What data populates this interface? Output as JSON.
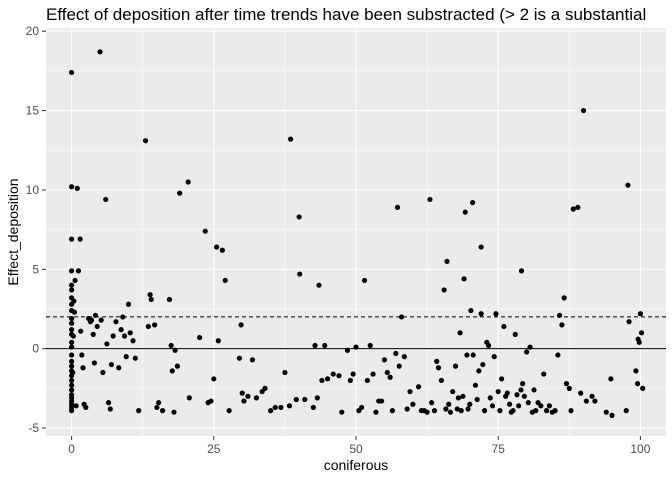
{
  "chart_data": {
    "type": "scatter",
    "title": "Effect of deposition after time trends have been substracted (> 2 is a substantial",
    "xlabel": "coniferous",
    "ylabel": "Effect_deposition",
    "xlim": [
      -4.5,
      104.5
    ],
    "ylim": [
      -5.5,
      20.2
    ],
    "x_ticks": [
      0,
      25,
      50,
      75,
      100
    ],
    "y_ticks": [
      -5,
      0,
      5,
      10,
      15,
      20
    ],
    "x_tick_labels": [
      "0",
      "25",
      "50",
      "75",
      "100"
    ],
    "y_tick_labels": [
      "-5",
      "0",
      "5",
      "10",
      "15",
      "20"
    ],
    "hlines": [
      {
        "y": 0,
        "style": "solid"
      },
      {
        "y": 2,
        "style": "dashed"
      }
    ],
    "grid": true,
    "background": "#ebebeb",
    "point_color": "#000000",
    "points": [
      [
        0,
        17.4
      ],
      [
        0,
        10.2
      ],
      [
        0,
        6.9
      ],
      [
        0,
        4.9
      ],
      [
        0,
        4.0
      ],
      [
        0,
        3.7
      ],
      [
        0,
        3.2
      ],
      [
        0,
        2.8
      ],
      [
        0,
        2.4
      ],
      [
        0,
        1.9
      ],
      [
        0,
        1.6
      ],
      [
        0,
        1.2
      ],
      [
        0,
        0.9
      ],
      [
        0,
        0.4
      ],
      [
        0,
        0.1
      ],
      [
        0,
        -0.4
      ],
      [
        0,
        -0.8
      ],
      [
        0,
        -1.1
      ],
      [
        0,
        -1.4
      ],
      [
        0,
        -1.7
      ],
      [
        0,
        -2.0
      ],
      [
        0,
        -2.3
      ],
      [
        0,
        -2.6
      ],
      [
        0,
        -2.9
      ],
      [
        0,
        -3.1
      ],
      [
        0,
        -3.3
      ],
      [
        0,
        -3.5
      ],
      [
        0,
        -3.7
      ],
      [
        0,
        -3.9
      ],
      [
        0.2,
        -1.5
      ],
      [
        0.3,
        0.8
      ],
      [
        0.4,
        3.0
      ],
      [
        0.5,
        2.3
      ],
      [
        0.6,
        4.3
      ],
      [
        0.8,
        -3.6
      ],
      [
        1.0,
        10.1
      ],
      [
        1.2,
        4.9
      ],
      [
        1.5,
        6.9
      ],
      [
        1.6,
        1.1
      ],
      [
        1.8,
        -0.4
      ],
      [
        2.0,
        -1.2
      ],
      [
        2.2,
        -3.5
      ],
      [
        2.5,
        -3.7
      ],
      [
        3.0,
        1.9
      ],
      [
        3.3,
        1.7
      ],
      [
        3.5,
        1.8
      ],
      [
        3.8,
        0.9
      ],
      [
        4.0,
        -0.9
      ],
      [
        4.2,
        2.1
      ],
      [
        4.5,
        1.4
      ],
      [
        5.0,
        18.7
      ],
      [
        5.2,
        1.8
      ],
      [
        5.5,
        -1.5
      ],
      [
        6.0,
        9.4
      ],
      [
        6.2,
        0.3
      ],
      [
        6.5,
        -3.4
      ],
      [
        6.8,
        -3.8
      ],
      [
        7.0,
        -1.0
      ],
      [
        7.3,
        0.8
      ],
      [
        7.8,
        1.7
      ],
      [
        8.3,
        -1.2
      ],
      [
        8.7,
        1.2
      ],
      [
        9.0,
        2.0
      ],
      [
        9.3,
        0.8
      ],
      [
        9.6,
        -0.5
      ],
      [
        10.0,
        2.8
      ],
      [
        10.3,
        1.0
      ],
      [
        10.8,
        0.5
      ],
      [
        11.2,
        -0.6
      ],
      [
        11.8,
        -3.9
      ],
      [
        13.0,
        13.1
      ],
      [
        13.5,
        1.4
      ],
      [
        13.8,
        3.4
      ],
      [
        14.0,
        3.1
      ],
      [
        14.6,
        1.5
      ],
      [
        15.0,
        -3.7
      ],
      [
        15.3,
        -3.4
      ],
      [
        16.0,
        -3.9
      ],
      [
        17.2,
        3.1
      ],
      [
        17.5,
        0.2
      ],
      [
        17.7,
        -1.4
      ],
      [
        18.0,
        -4.0
      ],
      [
        18.2,
        -0.1
      ],
      [
        18.6,
        -1.1
      ],
      [
        19.0,
        9.8
      ],
      [
        20.5,
        10.5
      ],
      [
        20.7,
        -3.1
      ],
      [
        22.5,
        0.7
      ],
      [
        23.5,
        7.4
      ],
      [
        24.0,
        -3.4
      ],
      [
        24.5,
        -3.3
      ],
      [
        25.0,
        -1.9
      ],
      [
        25.5,
        6.4
      ],
      [
        25.8,
        0.5
      ],
      [
        26.5,
        6.2
      ],
      [
        27.0,
        4.3
      ],
      [
        27.7,
        -3.9
      ],
      [
        29.5,
        -0.6
      ],
      [
        29.8,
        1.5
      ],
      [
        30.0,
        -2.8
      ],
      [
        30.3,
        -3.3
      ],
      [
        31.0,
        -3.0
      ],
      [
        31.8,
        -0.7
      ],
      [
        32.5,
        -3.1
      ],
      [
        33.5,
        -2.7
      ],
      [
        34.0,
        -2.5
      ],
      [
        35.0,
        -3.9
      ],
      [
        35.8,
        -3.7
      ],
      [
        36.8,
        -3.7
      ],
      [
        37.5,
        -1.5
      ],
      [
        38.5,
        13.2
      ],
      [
        38.3,
        -3.6
      ],
      [
        39.5,
        -3.2
      ],
      [
        40.0,
        8.3
      ],
      [
        40.1,
        4.7
      ],
      [
        41.0,
        -3.2
      ],
      [
        42.5,
        -3.7
      ],
      [
        42.8,
        0.2
      ],
      [
        43.2,
        -3.1
      ],
      [
        43.5,
        4.0
      ],
      [
        44.0,
        -2.0
      ],
      [
        44.5,
        0.2
      ],
      [
        45.0,
        -1.9
      ],
      [
        46.0,
        -1.6
      ],
      [
        47.0,
        -1.7
      ],
      [
        47.5,
        -4.0
      ],
      [
        48.5,
        -0.1
      ],
      [
        49.0,
        -2.0
      ],
      [
        49.5,
        -1.6
      ],
      [
        50.0,
        0.1
      ],
      [
        50.5,
        -3.9
      ],
      [
        51.0,
        -3.7
      ],
      [
        51.5,
        4.3
      ],
      [
        52.0,
        -2.0
      ],
      [
        52.5,
        0.2
      ],
      [
        53.0,
        -1.6
      ],
      [
        53.5,
        -4.0
      ],
      [
        54.0,
        -3.3
      ],
      [
        54.5,
        -3.3
      ],
      [
        55.0,
        -0.7
      ],
      [
        55.5,
        -1.5
      ],
      [
        56.0,
        -1.8
      ],
      [
        56.4,
        -3.9
      ],
      [
        57.0,
        -0.3
      ],
      [
        57.3,
        8.9
      ],
      [
        57.6,
        -1.1
      ],
      [
        58.0,
        2.0
      ],
      [
        58.5,
        -0.5
      ],
      [
        59.0,
        -3.8
      ],
      [
        59.5,
        -2.7
      ],
      [
        60.0,
        -3.5
      ],
      [
        61.0,
        -2.4
      ],
      [
        61.5,
        -3.9
      ],
      [
        62.0,
        -3.9
      ],
      [
        62.5,
        -4.0
      ],
      [
        63.0,
        9.4
      ],
      [
        63.3,
        -3.4
      ],
      [
        63.8,
        -3.9
      ],
      [
        64.2,
        -0.8
      ],
      [
        64.5,
        -1.2
      ],
      [
        65.0,
        -2.0
      ],
      [
        65.5,
        3.7
      ],
      [
        65.8,
        -3.8
      ],
      [
        66.0,
        5.5
      ],
      [
        66.3,
        -3.5
      ],
      [
        66.6,
        -4.0
      ],
      [
        67.0,
        -2.7
      ],
      [
        67.5,
        -1.1
      ],
      [
        67.8,
        -3.8
      ],
      [
        68.0,
        -3.1
      ],
      [
        68.3,
        1.0
      ],
      [
        68.5,
        -3.9
      ],
      [
        68.8,
        -3.0
      ],
      [
        69.0,
        4.4
      ],
      [
        69.2,
        8.6
      ],
      [
        69.5,
        -0.4
      ],
      [
        69.7,
        -3.8
      ],
      [
        70.0,
        -3.5
      ],
      [
        70.2,
        2.4
      ],
      [
        70.5,
        9.2
      ],
      [
        70.6,
        -0.4
      ],
      [
        71.0,
        -2.3
      ],
      [
        71.3,
        -3.2
      ],
      [
        71.6,
        -1.4
      ],
      [
        72.0,
        2.2
      ],
      [
        72.0,
        6.4
      ],
      [
        72.3,
        -1.0
      ],
      [
        72.6,
        -3.9
      ],
      [
        73.0,
        0.4
      ],
      [
        73.3,
        0.2
      ],
      [
        73.6,
        -3.1
      ],
      [
        74.0,
        -3.6
      ],
      [
        74.3,
        -0.5
      ],
      [
        74.6,
        2.2
      ],
      [
        75.0,
        -2.7
      ],
      [
        75.3,
        -3.9
      ],
      [
        75.6,
        -1.9
      ],
      [
        76.0,
        1.4
      ],
      [
        76.3,
        -3.0
      ],
      [
        76.6,
        -2.8
      ],
      [
        77.0,
        -3.5
      ],
      [
        77.3,
        -4.0
      ],
      [
        77.6,
        -3.9
      ],
      [
        78.0,
        0.9
      ],
      [
        78.3,
        -2.9
      ],
      [
        78.6,
        -3.6
      ],
      [
        79.0,
        -2.6
      ],
      [
        79.1,
        4.9
      ],
      [
        79.3,
        -2.2
      ],
      [
        79.6,
        -3.0
      ],
      [
        80.0,
        -0.2
      ],
      [
        80.3,
        -3.4
      ],
      [
        80.6,
        0.1
      ],
      [
        81.0,
        -4.0
      ],
      [
        81.3,
        -2.6
      ],
      [
        81.6,
        -3.9
      ],
      [
        82.0,
        -3.4
      ],
      [
        82.5,
        -3.6
      ],
      [
        83.0,
        -1.6
      ],
      [
        83.5,
        -3.9
      ],
      [
        84.0,
        -3.6
      ],
      [
        84.5,
        -4.0
      ],
      [
        85.0,
        -3.9
      ],
      [
        85.5,
        -0.4
      ],
      [
        85.8,
        2.1
      ],
      [
        86.2,
        1.5
      ],
      [
        86.6,
        3.2
      ],
      [
        87.0,
        -2.2
      ],
      [
        87.5,
        -2.5
      ],
      [
        87.8,
        -3.9
      ],
      [
        88.2,
        8.8
      ],
      [
        89.0,
        8.9
      ],
      [
        89.5,
        -2.8
      ],
      [
        90.0,
        15.0
      ],
      [
        90.5,
        -3.3
      ],
      [
        91.5,
        -3.0
      ],
      [
        92.0,
        -3.3
      ],
      [
        94.0,
        -4.0
      ],
      [
        94.8,
        -1.9
      ],
      [
        95.0,
        -4.2
      ],
      [
        97.5,
        -3.9
      ],
      [
        97.8,
        10.3
      ],
      [
        98.0,
        1.7
      ],
      [
        99.2,
        -1.4
      ],
      [
        99.5,
        -2.2
      ],
      [
        99.6,
        0.6
      ],
      [
        99.8,
        0.4
      ],
      [
        100.0,
        2.2
      ],
      [
        100.2,
        1.0
      ],
      [
        100.4,
        -2.5
      ]
    ]
  }
}
